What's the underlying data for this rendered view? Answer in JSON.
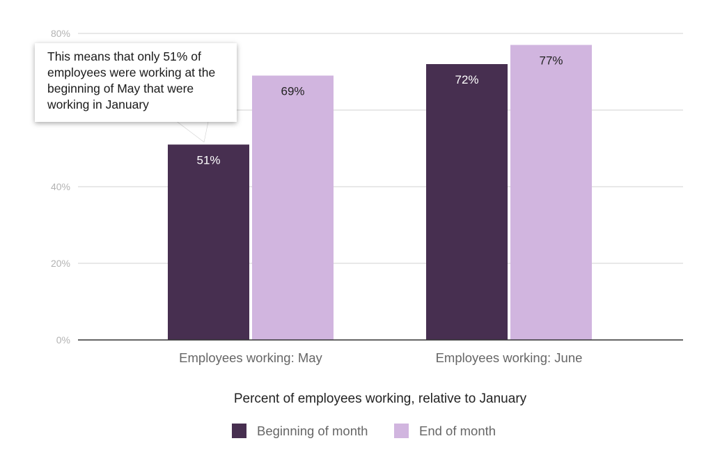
{
  "chart_data": {
    "type": "bar",
    "title": "",
    "xlabel": "Percent of employees working, relative to January",
    "ylabel": "",
    "ylim": [
      0,
      80
    ],
    "yticks": [
      "0%",
      "20%",
      "40%",
      "80%"
    ],
    "ytick_values": [
      0,
      20,
      40,
      80
    ],
    "gridlines_at": [
      20,
      40,
      60,
      80
    ],
    "grid": true,
    "legend_position": "bottom",
    "categories": [
      "Employees working: May",
      "Employees working: June"
    ],
    "series": [
      {
        "name": "Beginning of month",
        "color": "#472f50",
        "values": [
          51,
          72
        ],
        "labels": [
          "51%",
          "72%"
        ],
        "label_color": "#ffffff"
      },
      {
        "name": "End of month",
        "color": "#d1b5df",
        "values": [
          69,
          77
        ],
        "labels": [
          "69%",
          "77%"
        ],
        "label_color": "#222222"
      }
    ],
    "annotation": {
      "text": "This means that only 51% of employees were working at the beginning of May that were working in January"
    }
  }
}
